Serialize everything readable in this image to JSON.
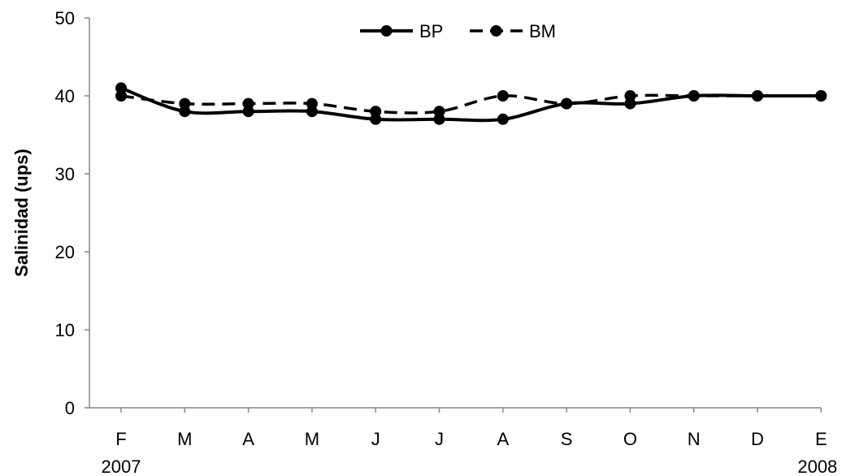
{
  "chart_data": {
    "type": "line",
    "title": "",
    "xlabel": "",
    "ylabel": "Salinidad  (ups)",
    "ylim": [
      0,
      50
    ],
    "yticks": [
      "0",
      "10",
      "20",
      "30",
      "40",
      "50"
    ],
    "categories": [
      "F",
      "M",
      "A",
      "M",
      "J",
      "J",
      "A",
      "S",
      "O",
      "N",
      "D",
      "E"
    ],
    "year_labels": [
      {
        "index": 0,
        "label": "2007"
      },
      {
        "index": 11,
        "label": "2008"
      }
    ],
    "grid": false,
    "legend_position": "top-center",
    "series": [
      {
        "name": "BP",
        "style": "solid",
        "color": "#000000",
        "values": [
          41,
          38,
          38,
          38,
          37,
          37,
          37,
          39,
          39,
          40,
          40,
          40
        ]
      },
      {
        "name": "BM",
        "style": "dashed",
        "color": "#000000",
        "values": [
          40,
          39,
          39,
          39,
          38,
          38,
          40,
          39,
          40,
          40,
          40,
          40
        ]
      }
    ]
  }
}
